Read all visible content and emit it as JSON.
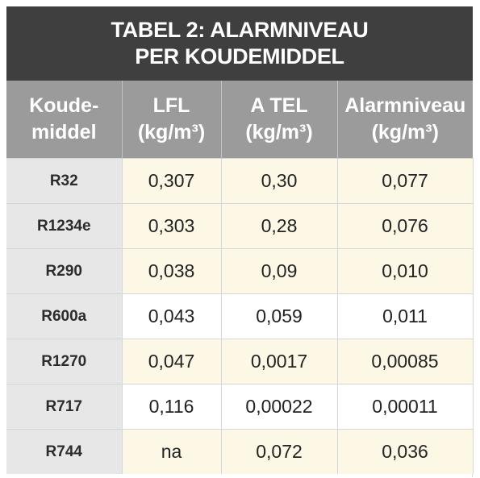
{
  "title": {
    "line1": "TABEL 2: ALARMNIVEAU",
    "line2": "PER KOUDEMIDDEL"
  },
  "columns": [
    {
      "line1": "Koude-",
      "line2": "middel"
    },
    {
      "line1": "LFL",
      "line2": "(kg/m³)"
    },
    {
      "line1": "A TEL",
      "line2": "(kg/m³)"
    },
    {
      "line1": "Alarmniveau",
      "line2": "(kg/m³)"
    }
  ],
  "rows": [
    {
      "name": "R32",
      "lfl": "0,307",
      "atel": "0,30",
      "alarm": "0,077"
    },
    {
      "name": "R1234e",
      "lfl": "0,303",
      "atel": "0,28",
      "alarm": "0,076"
    },
    {
      "name": "R290",
      "lfl": "0,038",
      "atel": "0,09",
      "alarm": "0,010"
    },
    {
      "name": "R600a",
      "lfl": "0,043",
      "atel": "0,059",
      "alarm": "0,011"
    },
    {
      "name": "R1270",
      "lfl": "0,047",
      "atel": "0,0017",
      "alarm": "0,00085"
    },
    {
      "name": "R717",
      "lfl": "0,116",
      "atel": "0,00022",
      "alarm": "0,00011"
    },
    {
      "name": "R744",
      "lfl": "na",
      "atel": "0,072",
      "alarm": "0,036"
    }
  ],
  "colors": {
    "title_bg": "#3f3f3f",
    "header_bg": "#9b9b9b",
    "name_col_bg": "#e7e7e7",
    "cream_row_bg": "#fdf8e6"
  }
}
